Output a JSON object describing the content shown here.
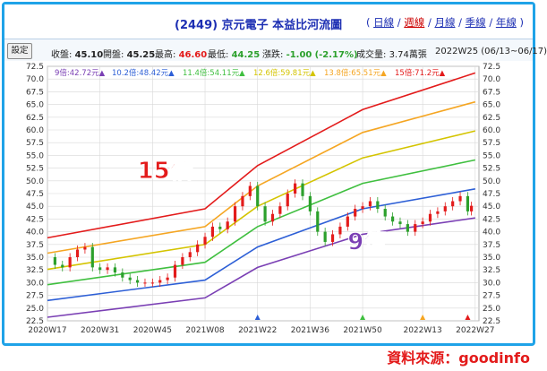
{
  "header": {
    "title": "(2449) 京元電子 本益比河流圖",
    "views_open": "(",
    "views": [
      {
        "label": "日線",
        "active": false
      },
      {
        "label": "週線",
        "active": true
      },
      {
        "label": "月線",
        "active": false
      },
      {
        "label": "季線",
        "active": false
      },
      {
        "label": "年線",
        "active": false
      }
    ],
    "views_close": ")"
  },
  "info": {
    "settings_label": "設定",
    "close_label": "收盤:",
    "close_value": "45.10",
    "open_label": "開盤:",
    "open_value": "45.25",
    "high_label": "最高:",
    "high_value": "46.60",
    "low_label": "最低:",
    "low_value": "44.25",
    "change_label": "漲跌:",
    "change_value": "-1.00",
    "change_pct": "(-2.17%)",
    "volume_label": "成交量:",
    "volume_value": "3.74萬張",
    "period": "2022W25 (06/13~06/17)"
  },
  "credit": "資料來源：goodinfo",
  "colors": {
    "pe9": "#7a3fb4",
    "pe10_2": "#2d5fd6",
    "pe11_4": "#3fbf3f",
    "pe12_6": "#e6e600",
    "pe13_8": "#f5a623",
    "pe15": "#e31b1b",
    "up": "#e31b1b",
    "down": "#2ca02c"
  },
  "chart_data": {
    "type": "line",
    "title": "",
    "xlabel": "",
    "ylabel": "",
    "ylim": [
      22.5,
      72.5
    ],
    "yticks": [
      "22.5",
      "25.0",
      "27.5",
      "30.0",
      "32.5",
      "35.0",
      "37.5",
      "40.0",
      "42.5",
      "45.0",
      "47.5",
      "50.0",
      "52.5",
      "55.0",
      "57.5",
      "60.0",
      "62.5",
      "65.0",
      "67.5",
      "70.0",
      "72.5"
    ],
    "xticks": [
      "2020W17",
      "2020W31",
      "2020W45",
      "2021W08",
      "2021W22",
      "2021W36",
      "2021W50",
      "2022W13",
      "2022W27"
    ],
    "legend": [
      {
        "label": "9倍:42.72元▲",
        "color": "#7a3fb4"
      },
      {
        "label": "10.2倍:48.42元▲",
        "color": "#2d5fd6"
      },
      {
        "label": "11.4倍:54.11元▲",
        "color": "#3fbf3f"
      },
      {
        "label": "12.6倍:59.81元▲",
        "color": "#d4c400"
      },
      {
        "label": "13.8倍:65.51元▲",
        "color": "#f5a623"
      },
      {
        "label": "15倍:71.2元▲",
        "color": "#e31b1b"
      }
    ],
    "annotations": [
      {
        "text": "15倍",
        "color": "#e31b1b"
      },
      {
        "text": "9倍",
        "color": "#7a3fb4"
      }
    ],
    "x": [
      0,
      14,
      28,
      42,
      56,
      70,
      84,
      100,
      114
    ],
    "series": [
      {
        "name": "9倍",
        "color": "#7a3fb4",
        "values": [
          [
            0,
            23.2
          ],
          [
            42,
            27.0
          ],
          [
            56,
            33.0
          ],
          [
            84,
            39.5
          ],
          [
            114,
            42.72
          ]
        ]
      },
      {
        "name": "10.2倍",
        "color": "#2d5fd6",
        "values": [
          [
            0,
            26.5
          ],
          [
            42,
            30.5
          ],
          [
            56,
            37.0
          ],
          [
            84,
            44.5
          ],
          [
            114,
            48.42
          ]
        ]
      },
      {
        "name": "11.4倍",
        "color": "#3fbf3f",
        "values": [
          [
            0,
            29.6
          ],
          [
            42,
            34.0
          ],
          [
            56,
            41.0
          ],
          [
            84,
            49.5
          ],
          [
            114,
            54.11
          ]
        ]
      },
      {
        "name": "12.6倍",
        "color": "#d4c400",
        "values": [
          [
            0,
            32.6
          ],
          [
            42,
            37.5
          ],
          [
            56,
            45.0
          ],
          [
            84,
            54.5
          ],
          [
            114,
            59.81
          ]
        ]
      },
      {
        "name": "13.8倍",
        "color": "#f5a623",
        "values": [
          [
            0,
            35.8
          ],
          [
            42,
            41.0
          ],
          [
            56,
            49.0
          ],
          [
            84,
            59.5
          ],
          [
            114,
            65.51
          ]
        ]
      },
      {
        "name": "15倍",
        "color": "#e31b1b",
        "values": [
          [
            0,
            38.8
          ],
          [
            42,
            44.5
          ],
          [
            56,
            53.0
          ],
          [
            84,
            64.0
          ],
          [
            114,
            71.2
          ]
        ]
      }
    ],
    "price": [
      [
        0,
        35.0
      ],
      [
        2,
        33.5
      ],
      [
        4,
        33.0
      ],
      [
        6,
        35.0
      ],
      [
        8,
        36.5
      ],
      [
        10,
        37.0
      ],
      [
        12,
        33.0
      ],
      [
        14,
        32.5
      ],
      [
        16,
        33.0
      ],
      [
        18,
        32.0
      ],
      [
        20,
        31.0
      ],
      [
        22,
        30.5
      ],
      [
        24,
        30.0
      ],
      [
        26,
        30.0
      ],
      [
        28,
        30.0
      ],
      [
        30,
        30.5
      ],
      [
        32,
        31.0
      ],
      [
        34,
        33.5
      ],
      [
        36,
        35.0
      ],
      [
        38,
        36.0
      ],
      [
        40,
        37.5
      ],
      [
        42,
        39.0
      ],
      [
        44,
        41.0
      ],
      [
        46,
        40.5
      ],
      [
        48,
        42.0
      ],
      [
        50,
        45.0
      ],
      [
        52,
        47.0
      ],
      [
        54,
        49.0
      ],
      [
        56,
        45.0
      ],
      [
        58,
        42.0
      ],
      [
        60,
        43.5
      ],
      [
        62,
        45.0
      ],
      [
        64,
        47.5
      ],
      [
        66,
        49.5
      ],
      [
        68,
        47.0
      ],
      [
        70,
        44.0
      ],
      [
        72,
        40.0
      ],
      [
        74,
        38.0
      ],
      [
        76,
        39.5
      ],
      [
        78,
        41.0
      ],
      [
        80,
        43.0
      ],
      [
        82,
        44.5
      ],
      [
        84,
        45.0
      ],
      [
        86,
        46.0
      ],
      [
        88,
        44.5
      ],
      [
        90,
        43.0
      ],
      [
        92,
        42.0
      ],
      [
        94,
        41.5
      ],
      [
        96,
        40.0
      ],
      [
        98,
        41.5
      ],
      [
        100,
        42.0
      ],
      [
        102,
        43.5
      ],
      [
        104,
        44.0
      ],
      [
        106,
        45.0
      ],
      [
        108,
        46.0
      ],
      [
        110,
        47.0
      ],
      [
        112,
        44.0
      ],
      [
        113,
        45.1
      ]
    ]
  }
}
